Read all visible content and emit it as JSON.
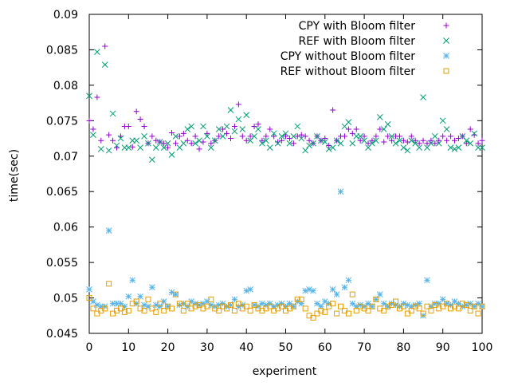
{
  "chart_data": {
    "type": "scatter",
    "xlabel": "experiment",
    "ylabel": "time(sec)",
    "xlim": [
      0,
      100
    ],
    "ylim": [
      0.045,
      0.09
    ],
    "xticks": [
      "0",
      "10",
      "20",
      "30",
      "40",
      "50",
      "60",
      "70",
      "80",
      "90",
      "100"
    ],
    "yticks": [
      "0.045",
      "0.05",
      "0.055",
      "0.06",
      "0.065",
      "0.07",
      "0.075",
      "0.08",
      "0.085",
      "0.09"
    ],
    "xtick_values": [
      0,
      10,
      20,
      30,
      40,
      50,
      60,
      70,
      80,
      90,
      100
    ],
    "ytick_values": [
      0.045,
      0.05,
      0.055,
      0.06,
      0.065,
      0.07,
      0.075,
      0.08,
      0.085,
      0.09
    ],
    "grid": false,
    "legend_position": "top-right",
    "series": [
      {
        "name": "CPY with Bloom filter",
        "marker": "plus",
        "color": "#9400d3",
        "x": [
          0,
          1,
          2,
          3,
          4,
          5,
          6,
          7,
          8,
          9,
          10,
          11,
          12,
          13,
          14,
          15,
          16,
          17,
          18,
          19,
          20,
          21,
          22,
          23,
          24,
          25,
          26,
          27,
          28,
          29,
          30,
          31,
          32,
          33,
          34,
          35,
          36,
          37,
          38,
          39,
          40,
          41,
          42,
          43,
          44,
          45,
          46,
          47,
          48,
          49,
          50,
          51,
          52,
          53,
          54,
          55,
          56,
          57,
          58,
          59,
          60,
          61,
          62,
          63,
          64,
          65,
          66,
          67,
          68,
          69,
          70,
          71,
          72,
          73,
          74,
          75,
          76,
          77,
          78,
          79,
          80,
          81,
          82,
          83,
          84,
          85,
          86,
          87,
          88,
          89,
          90,
          91,
          92,
          93,
          94,
          95,
          96,
          97,
          98,
          99,
          100
        ],
        "y": [
          0.075,
          0.0738,
          0.0783,
          0.0722,
          0.0855,
          0.073,
          0.0722,
          0.0712,
          0.0728,
          0.0742,
          0.0742,
          0.0713,
          0.0763,
          0.0752,
          0.0742,
          0.0718,
          0.0728,
          0.0722,
          0.072,
          0.0718,
          0.0712,
          0.0733,
          0.0718,
          0.0728,
          0.0732,
          0.0722,
          0.0718,
          0.0728,
          0.071,
          0.072,
          0.0732,
          0.0718,
          0.0722,
          0.0728,
          0.0738,
          0.0732,
          0.0725,
          0.0742,
          0.0773,
          0.0728,
          0.0722,
          0.0728,
          0.0742,
          0.0745,
          0.0722,
          0.0728,
          0.0738,
          0.0728,
          0.072,
          0.0722,
          0.0728,
          0.0725,
          0.0718,
          0.0728,
          0.073,
          0.0728,
          0.0722,
          0.0718,
          0.0728,
          0.0722,
          0.0725,
          0.0715,
          0.0765,
          0.0722,
          0.0728,
          0.0728,
          0.0738,
          0.0732,
          0.0738,
          0.0722,
          0.0728,
          0.0718,
          0.0722,
          0.0728,
          0.0738,
          0.072,
          0.0728,
          0.0722,
          0.0728,
          0.0728,
          0.0722,
          0.072,
          0.0728,
          0.0722,
          0.0718,
          0.0722,
          0.0718,
          0.0722,
          0.0718,
          0.0722,
          0.0728,
          0.0722,
          0.0728,
          0.0722,
          0.0725,
          0.0728,
          0.0718,
          0.0738,
          0.073,
          0.0718,
          0.0722
        ]
      },
      {
        "name": "REF with Bloom filter",
        "marker": "cross",
        "color": "#009e73",
        "x": [
          0,
          1,
          2,
          3,
          4,
          5,
          6,
          7,
          8,
          9,
          10,
          11,
          12,
          13,
          14,
          15,
          16,
          17,
          18,
          19,
          20,
          21,
          22,
          23,
          24,
          25,
          26,
          27,
          28,
          29,
          30,
          31,
          32,
          33,
          34,
          35,
          36,
          37,
          38,
          39,
          40,
          41,
          42,
          43,
          44,
          45,
          46,
          47,
          48,
          49,
          50,
          51,
          52,
          53,
          54,
          55,
          56,
          57,
          58,
          59,
          60,
          61,
          62,
          63,
          64,
          65,
          66,
          67,
          68,
          69,
          70,
          71,
          72,
          73,
          74,
          75,
          76,
          77,
          78,
          79,
          80,
          81,
          82,
          83,
          84,
          85,
          86,
          87,
          88,
          89,
          90,
          91,
          92,
          93,
          94,
          95,
          96,
          97,
          98,
          99,
          100
        ],
        "y": [
          0.0785,
          0.073,
          0.0847,
          0.071,
          0.0829,
          0.0708,
          0.076,
          0.0715,
          0.0725,
          0.0712,
          0.0712,
          0.0722,
          0.0722,
          0.0712,
          0.0728,
          0.0718,
          0.0695,
          0.0712,
          0.072,
          0.0712,
          0.0718,
          0.0702,
          0.0728,
          0.0712,
          0.0718,
          0.0738,
          0.0742,
          0.0718,
          0.0722,
          0.0742,
          0.0728,
          0.0712,
          0.0722,
          0.0738,
          0.0728,
          0.0742,
          0.0765,
          0.0735,
          0.0752,
          0.0738,
          0.0758,
          0.0722,
          0.0728,
          0.0738,
          0.0718,
          0.0722,
          0.0712,
          0.0732,
          0.0718,
          0.0728,
          0.0732,
          0.0718,
          0.0728,
          0.0742,
          0.0725,
          0.0708,
          0.0715,
          0.0718,
          0.0728,
          0.0722,
          0.072,
          0.071,
          0.0712,
          0.0722,
          0.0718,
          0.0742,
          0.0748,
          0.0718,
          0.0728,
          0.0728,
          0.0722,
          0.0712,
          0.0718,
          0.0722,
          0.0755,
          0.0738,
          0.0745,
          0.0728,
          0.0718,
          0.0722,
          0.0712,
          0.0708,
          0.0722,
          0.0718,
          0.0712,
          0.0783,
          0.0712,
          0.0718,
          0.0728,
          0.0718,
          0.075,
          0.0738,
          0.0712,
          0.071,
          0.0712,
          0.0728,
          0.0722,
          0.0718,
          0.0732,
          0.0712,
          0.0712
        ]
      },
      {
        "name": "CPY without Bloom filter",
        "marker": "star",
        "color": "#56b4e9",
        "x": [
          0,
          1,
          2,
          3,
          4,
          5,
          6,
          7,
          8,
          9,
          10,
          11,
          12,
          13,
          14,
          15,
          16,
          17,
          18,
          19,
          20,
          21,
          22,
          23,
          24,
          25,
          26,
          27,
          28,
          29,
          30,
          31,
          32,
          33,
          34,
          35,
          36,
          37,
          38,
          39,
          40,
          41,
          42,
          43,
          44,
          45,
          46,
          47,
          48,
          49,
          50,
          51,
          52,
          53,
          54,
          55,
          56,
          57,
          58,
          59,
          60,
          61,
          62,
          63,
          64,
          65,
          66,
          67,
          68,
          69,
          70,
          71,
          72,
          73,
          74,
          75,
          76,
          77,
          78,
          79,
          80,
          81,
          82,
          83,
          84,
          85,
          86,
          87,
          88,
          89,
          90,
          91,
          92,
          93,
          94,
          95,
          96,
          97,
          98,
          99,
          100
        ],
        "y": [
          0.0512,
          0.0495,
          0.049,
          0.0488,
          0.0488,
          0.0595,
          0.0492,
          0.0492,
          0.0492,
          0.0488,
          0.0502,
          0.0525,
          0.0492,
          0.0502,
          0.049,
          0.0488,
          0.0515,
          0.049,
          0.0488,
          0.0495,
          0.0488,
          0.0508,
          0.0505,
          0.049,
          0.0492,
          0.0488,
          0.0495,
          0.0492,
          0.049,
          0.0492,
          0.0495,
          0.049,
          0.0488,
          0.049,
          0.0492,
          0.0488,
          0.049,
          0.0498,
          0.0488,
          0.049,
          0.051,
          0.0512,
          0.049,
          0.0488,
          0.0492,
          0.049,
          0.0492,
          0.0488,
          0.049,
          0.0492,
          0.0488,
          0.0492,
          0.0488,
          0.0495,
          0.0492,
          0.051,
          0.0512,
          0.051,
          0.0492,
          0.0488,
          0.0495,
          0.0492,
          0.0512,
          0.0505,
          0.065,
          0.0515,
          0.0525,
          0.0492,
          0.0488,
          0.049,
          0.0488,
          0.0492,
          0.0488,
          0.0498,
          0.0505,
          0.0492,
          0.0488,
          0.0492,
          0.049,
          0.0488,
          0.0492,
          0.049,
          0.0488,
          0.049,
          0.0492,
          0.0475,
          0.0525,
          0.0488,
          0.0492,
          0.0492,
          0.0498,
          0.0492,
          0.049,
          0.0495,
          0.0492,
          0.0488,
          0.049,
          0.0492,
          0.0488,
          0.0492,
          0.0488
        ]
      },
      {
        "name": "REF without Bloom filter",
        "marker": "square",
        "color": "#e69f00",
        "x": [
          0,
          1,
          2,
          3,
          4,
          5,
          6,
          7,
          8,
          9,
          10,
          11,
          12,
          13,
          14,
          15,
          16,
          17,
          18,
          19,
          20,
          21,
          22,
          23,
          24,
          25,
          26,
          27,
          28,
          29,
          30,
          31,
          32,
          33,
          34,
          35,
          36,
          37,
          38,
          39,
          40,
          41,
          42,
          43,
          44,
          45,
          46,
          47,
          48,
          49,
          50,
          51,
          52,
          53,
          54,
          55,
          56,
          57,
          58,
          59,
          60,
          61,
          62,
          63,
          64,
          65,
          66,
          67,
          68,
          69,
          70,
          71,
          72,
          73,
          74,
          75,
          76,
          77,
          78,
          79,
          80,
          81,
          82,
          83,
          84,
          85,
          86,
          87,
          88,
          89,
          90,
          91,
          92,
          93,
          94,
          95,
          96,
          97,
          98,
          99,
          100
        ],
        "y": [
          0.05,
          0.0485,
          0.0478,
          0.0482,
          0.0485,
          0.052,
          0.0478,
          0.0482,
          0.0485,
          0.048,
          0.0482,
          0.0492,
          0.0495,
          0.0485,
          0.0482,
          0.0498,
          0.0485,
          0.048,
          0.0492,
          0.0482,
          0.0488,
          0.0485,
          0.0505,
          0.0492,
          0.0482,
          0.0492,
          0.0485,
          0.0488,
          0.049,
          0.0485,
          0.0488,
          0.0498,
          0.0485,
          0.0482,
          0.0488,
          0.0485,
          0.049,
          0.0482,
          0.0492,
          0.0485,
          0.0488,
          0.0482,
          0.049,
          0.0485,
          0.0482,
          0.0485,
          0.0488,
          0.0482,
          0.0485,
          0.0488,
          0.0482,
          0.0485,
          0.0488,
          0.0498,
          0.0498,
          0.0485,
          0.0475,
          0.0472,
          0.0478,
          0.0482,
          0.048,
          0.0488,
          0.0492,
          0.0478,
          0.0488,
          0.0482,
          0.0478,
          0.0505,
          0.0482,
          0.0488,
          0.0485,
          0.0482,
          0.0488,
          0.0498,
          0.0485,
          0.0482,
          0.0488,
          0.049,
          0.0495,
          0.0485,
          0.0488,
          0.0478,
          0.0482,
          0.0488,
          0.0485,
          0.0478,
          0.0488,
          0.0482,
          0.049,
          0.0485,
          0.0488,
          0.0492,
          0.0485,
          0.0488,
          0.0485,
          0.0492,
          0.049,
          0.0482,
          0.0488,
          0.0478,
          0.0488
        ]
      }
    ]
  }
}
